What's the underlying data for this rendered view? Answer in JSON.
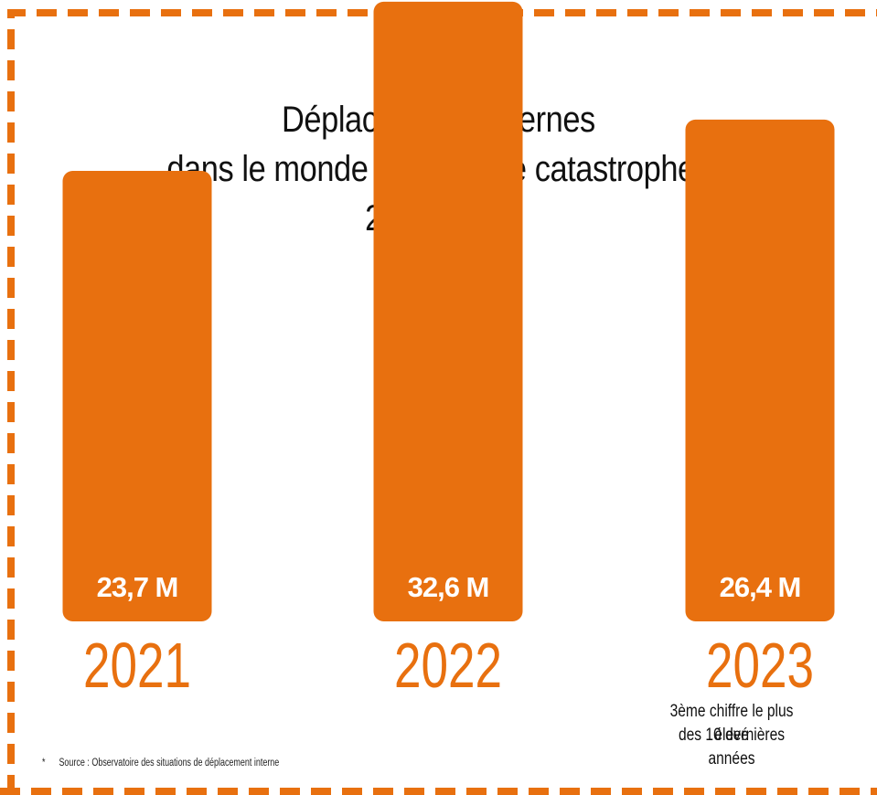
{
  "title_lines": [
    "Déplacements internes",
    "dans le monde à cause de catastrophes",
    "2021-2023"
  ],
  "colors": {
    "accent": "#E8700F",
    "text": "#111111",
    "label": "#ffffff"
  },
  "note_lines": [
    "3ème chiffre le plus élevé",
    "des 10 dernières années"
  ],
  "source": {
    "marker": "*",
    "text": "Source : Observatoire des situations de déplacement interne"
  },
  "chart_data": {
    "type": "bar",
    "title": "Déplacements internes dans le monde à cause de catastrophes 2021-2023",
    "categories": [
      "2021",
      "2022",
      "2023"
    ],
    "values": [
      23.7,
      32.6,
      26.4
    ],
    "value_labels": [
      "23,7 M",
      "32,6 M",
      "26,4 M"
    ],
    "unit": "M",
    "grid": false,
    "legend": "none"
  }
}
